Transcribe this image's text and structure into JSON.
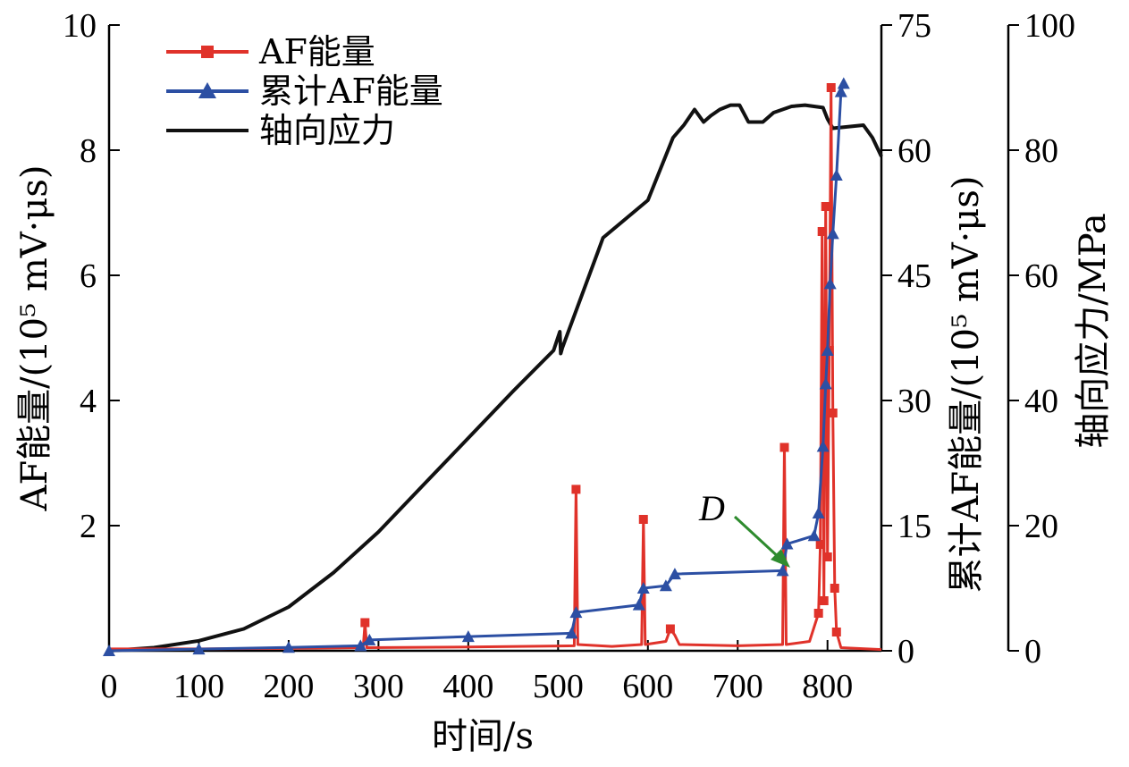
{
  "chart_data": {
    "type": "line",
    "xlabel": "时间/s",
    "xlim": [
      0,
      860
    ],
    "xticks": [
      0,
      100,
      200,
      300,
      400,
      500,
      600,
      700,
      800
    ],
    "left_axis": {
      "label": "AF能量/(10⁵ mV·μs)",
      "ylim": [
        0,
        10
      ],
      "ticks": [
        2,
        4,
        6,
        8,
        10
      ]
    },
    "right_axis_1": {
      "label": "累计AF能量/(10⁵ mV·μs)",
      "ylim": [
        0,
        75
      ],
      "ticks": [
        0,
        15,
        30,
        45,
        60,
        75
      ]
    },
    "right_axis_2": {
      "label": "轴向应力/MPa",
      "ylim": [
        0,
        100
      ],
      "ticks": [
        0,
        20,
        40,
        60,
        80,
        100
      ]
    },
    "series": [
      {
        "name": "AF能量",
        "axis": "left",
        "color": "#e0322a",
        "marker": "square",
        "points": [
          [
            0,
            0.03
          ],
          [
            100,
            0.03
          ],
          [
            200,
            0.04
          ],
          [
            283,
            0.05
          ],
          [
            285,
            0.45
          ],
          [
            287,
            0.05
          ],
          [
            400,
            0.06
          ],
          [
            518,
            0.08
          ],
          [
            520,
            2.58
          ],
          [
            522,
            0.1
          ],
          [
            560,
            0.07
          ],
          [
            593,
            0.1
          ],
          [
            595,
            2.1
          ],
          [
            597,
            0.1
          ],
          [
            620,
            0.15
          ],
          [
            625,
            0.35
          ],
          [
            630,
            0.25
          ],
          [
            635,
            0.1
          ],
          [
            700,
            0.08
          ],
          [
            750,
            0.1
          ],
          [
            752,
            3.25
          ],
          [
            754,
            0.1
          ],
          [
            780,
            0.15
          ],
          [
            790,
            0.6
          ],
          [
            792,
            1.7
          ],
          [
            794,
            6.7
          ],
          [
            796,
            0.8
          ],
          [
            798,
            7.1
          ],
          [
            800,
            1.5
          ],
          [
            802,
            4.8
          ],
          [
            804,
            9.0
          ],
          [
            806,
            3.8
          ],
          [
            808,
            1.0
          ],
          [
            810,
            0.3
          ],
          [
            815,
            0.05
          ],
          [
            860,
            0.02
          ]
        ]
      },
      {
        "name": "累计AF能量",
        "axis": "right_1",
        "color": "#2c4fa3",
        "marker": "triangle",
        "points": [
          [
            0,
            0
          ],
          [
            100,
            0.2
          ],
          [
            200,
            0.4
          ],
          [
            280,
            0.6
          ],
          [
            290,
            1.3
          ],
          [
            400,
            1.7
          ],
          [
            515,
            2.1
          ],
          [
            520,
            4.6
          ],
          [
            590,
            5.5
          ],
          [
            595,
            7.5
          ],
          [
            620,
            7.8
          ],
          [
            630,
            9.2
          ],
          [
            750,
            9.6
          ],
          [
            755,
            12.8
          ],
          [
            785,
            13.8
          ],
          [
            790,
            16.5
          ],
          [
            795,
            24.5
          ],
          [
            798,
            32
          ],
          [
            800,
            36
          ],
          [
            803,
            44
          ],
          [
            806,
            50
          ],
          [
            810,
            57
          ],
          [
            815,
            67
          ],
          [
            818,
            68
          ]
        ]
      },
      {
        "name": "轴向应力",
        "axis": "right_2",
        "color": "#111111",
        "points": [
          [
            0,
            0
          ],
          [
            50,
            0.5
          ],
          [
            100,
            1.6
          ],
          [
            150,
            3.5
          ],
          [
            200,
            7
          ],
          [
            250,
            12.5
          ],
          [
            300,
            19
          ],
          [
            350,
            26.5
          ],
          [
            400,
            34
          ],
          [
            450,
            41.5
          ],
          [
            495,
            48
          ],
          [
            502,
            51
          ],
          [
            503,
            47.5
          ],
          [
            505,
            48.5
          ],
          [
            545,
            64
          ],
          [
            550,
            66
          ],
          [
            600,
            72
          ],
          [
            628,
            82
          ],
          [
            640,
            84
          ],
          [
            652,
            86.5
          ],
          [
            662,
            84.5
          ],
          [
            670,
            85.5
          ],
          [
            680,
            86.5
          ],
          [
            692,
            87.2
          ],
          [
            702,
            87.2
          ],
          [
            712,
            84.5
          ],
          [
            728,
            84.5
          ],
          [
            740,
            86
          ],
          [
            760,
            87
          ],
          [
            775,
            87.2
          ],
          [
            795,
            86.8
          ],
          [
            800,
            85
          ],
          [
            806,
            83.5
          ],
          [
            840,
            84
          ],
          [
            850,
            82
          ],
          [
            860,
            79
          ]
        ]
      }
    ],
    "annotations": [
      {
        "text": "D"
      }
    ]
  }
}
